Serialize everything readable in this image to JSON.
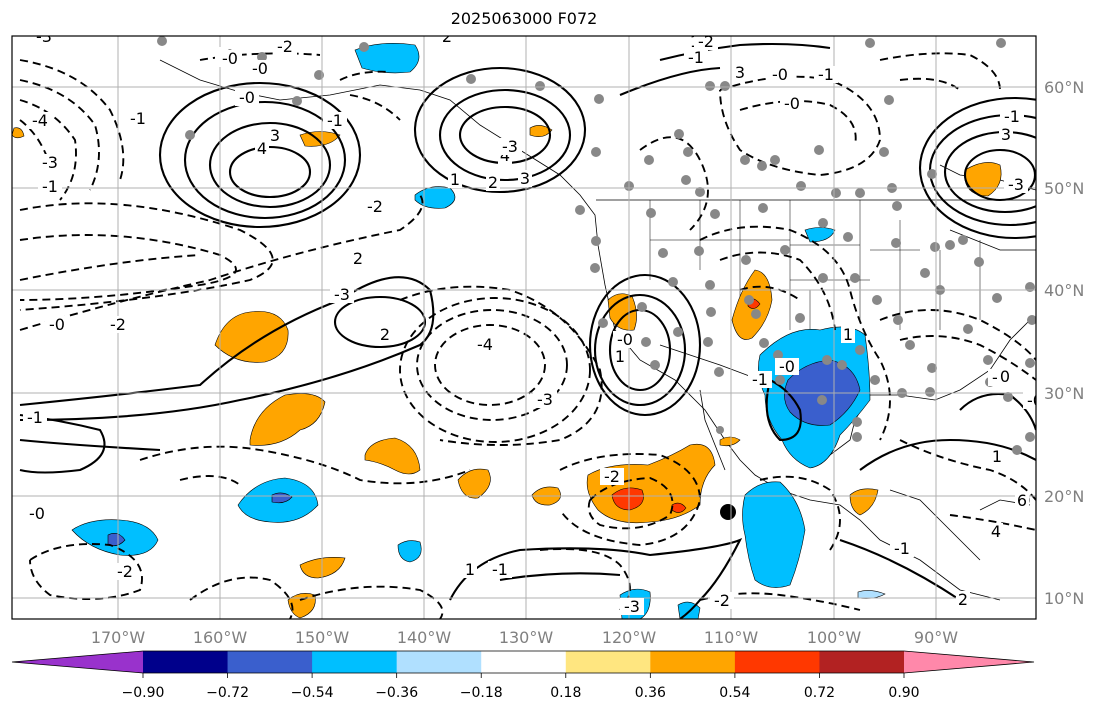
{
  "title": "2025063000 F072",
  "lon_ticks": [
    "170°W",
    "160°W",
    "150°W",
    "140°W",
    "130°W",
    "120°W",
    "110°W",
    "100°W",
    "90°W"
  ],
  "lat_ticks": [
    "60°N",
    "50°N",
    "40°N",
    "30°N",
    "20°N",
    "10°N"
  ],
  "colorbar": {
    "ticks": [
      "−0.90",
      "−0.72",
      "−0.54",
      "−0.36",
      "−0.18",
      "0.18",
      "0.36",
      "0.54",
      "0.72",
      "0.90"
    ],
    "colors": [
      "#9932cc",
      "#00008b",
      "#3a5fcd",
      "#00bfff",
      "#b0e0ff",
      "#ffffff",
      "#ffe680",
      "#ffa500",
      "#ff3800",
      "#b22222",
      "#ff88aa"
    ]
  },
  "contour_labels": [
    "-3",
    "2",
    "-2",
    "-4",
    "-3",
    "-1",
    "-0",
    "3",
    "4",
    "-1",
    "-0",
    "-1",
    "4",
    "-3",
    "2",
    "3",
    "-2",
    "1",
    "2",
    "-0",
    "-2",
    "-3",
    "2",
    "-4",
    "-3",
    "-1",
    "-0",
    "-2",
    "-2",
    "1",
    "-0",
    "1",
    "-1",
    "-3",
    "-2",
    "3",
    "-0",
    "-1",
    "-0",
    "-1",
    "-1",
    "1",
    "-0",
    "-1",
    "-1",
    "0",
    "1",
    "-1",
    "3",
    "-3",
    "2",
    "4",
    "6",
    "1",
    "-1",
    "-0",
    "-2",
    "-0",
    "-0"
  ],
  "point_marker": {
    "label": "",
    "lon": -110,
    "lat": 18.5
  }
}
